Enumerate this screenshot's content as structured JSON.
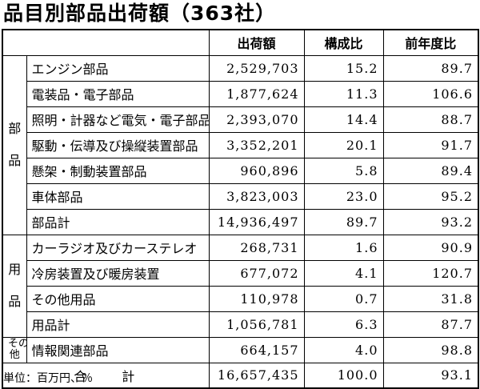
{
  "title": "品目別部品出荷額（363社）",
  "unit_note": "単位：百万円、％",
  "headers": {
    "amount": "出荷額",
    "share": "構成比",
    "yoy": "前年度比"
  },
  "groups": {
    "parts": {
      "char1": "部",
      "char2": "品"
    },
    "goods": {
      "char1": "用",
      "char2": "品"
    },
    "other": {
      "char1": "その",
      "char2": "他"
    }
  },
  "rows": [
    {
      "name": "エンジン部品",
      "amount": "2,529,703",
      "share": "15.2",
      "yoy": "89.7"
    },
    {
      "name": "電装品・電子部品",
      "amount": "1,877,624",
      "share": "11.3",
      "yoy": "106.6"
    },
    {
      "name": "照明・計器など電気・電子部品",
      "amount": "2,393,070",
      "share": "14.4",
      "yoy": "88.7"
    },
    {
      "name": "駆動・伝導及び操縦装置部品",
      "amount": "3,352,201",
      "share": "20.1",
      "yoy": "91.7"
    },
    {
      "name": "懸架・制動装置部品",
      "amount": "960,896",
      "share": "5.8",
      "yoy": "89.4"
    },
    {
      "name": "車体部品",
      "amount": "3,823,003",
      "share": "23.0",
      "yoy": "95.2"
    },
    {
      "name": "部品計",
      "amount": "14,936,497",
      "share": "89.7",
      "yoy": "93.2"
    },
    {
      "name": "カーラジオ及びカーステレオ",
      "amount": "268,731",
      "share": "1.6",
      "yoy": "90.9"
    },
    {
      "name": "冷房装置及び暖房装置",
      "amount": "677,072",
      "share": "4.1",
      "yoy": "120.7"
    },
    {
      "name": "その他用品",
      "amount": "110,978",
      "share": "0.7",
      "yoy": "31.8"
    },
    {
      "name": "用品計",
      "amount": "1,056,781",
      "share": "6.3",
      "yoy": "87.7"
    },
    {
      "name": "情報関連部品",
      "amount": "664,157",
      "share": "4.0",
      "yoy": "98.8"
    }
  ],
  "total": {
    "label": "合　　計",
    "amount": "16,657,435",
    "share": "100.0",
    "yoy": "93.1"
  }
}
